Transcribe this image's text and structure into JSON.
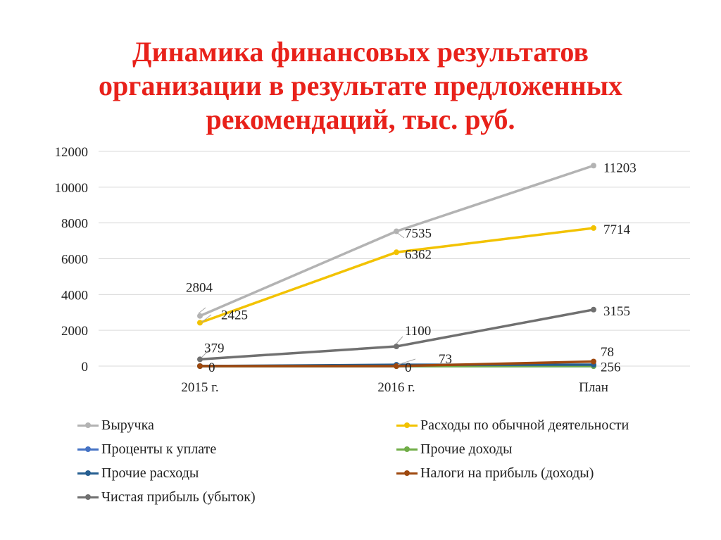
{
  "title_lines": [
    "Динамика финансовых результатов",
    "организации в результате предложенных",
    "рекомендаций, тыс. руб."
  ],
  "chart_data": {
    "type": "line",
    "categories": [
      "2015 г.",
      "2016 г.",
      "План"
    ],
    "ylim": [
      0,
      12000
    ],
    "yticks": [
      0,
      2000,
      4000,
      6000,
      8000,
      10000,
      12000
    ],
    "grid": true,
    "legend_position": "bottom",
    "series": [
      {
        "name": "Выручка",
        "color": "#b3b3b3",
        "values": [
          2804,
          7535,
          11203
        ],
        "labels": [
          "2804",
          "7535",
          "11203"
        ]
      },
      {
        "name": "Расходы по обычной деятельности",
        "color": "#f2c200",
        "values": [
          2425,
          6362,
          7714
        ],
        "labels": [
          "2425",
          "6362",
          "7714"
        ]
      },
      {
        "name": "Проценты к уплате",
        "color": "#4472c4",
        "values": [
          0,
          0,
          0
        ],
        "labels": []
      },
      {
        "name": "Прочие доходы",
        "color": "#70ad47",
        "values": [
          0,
          0,
          0
        ],
        "labels": []
      },
      {
        "name": "Прочие расходы",
        "color": "#255e91",
        "values": [
          0,
          73,
          78
        ],
        "labels": [
          "",
          "73",
          "78"
        ]
      },
      {
        "name": "Налоги на прибыль (доходы)",
        "color": "#9e480e",
        "values": [
          0,
          0,
          256
        ],
        "labels": [
          "0",
          "0",
          "256"
        ]
      },
      {
        "name": "Чистая прибыль (убыток)",
        "color": "#707070",
        "values": [
          379,
          1100,
          3155
        ],
        "labels": [
          "379",
          "1100",
          "3155"
        ]
      }
    ]
  }
}
